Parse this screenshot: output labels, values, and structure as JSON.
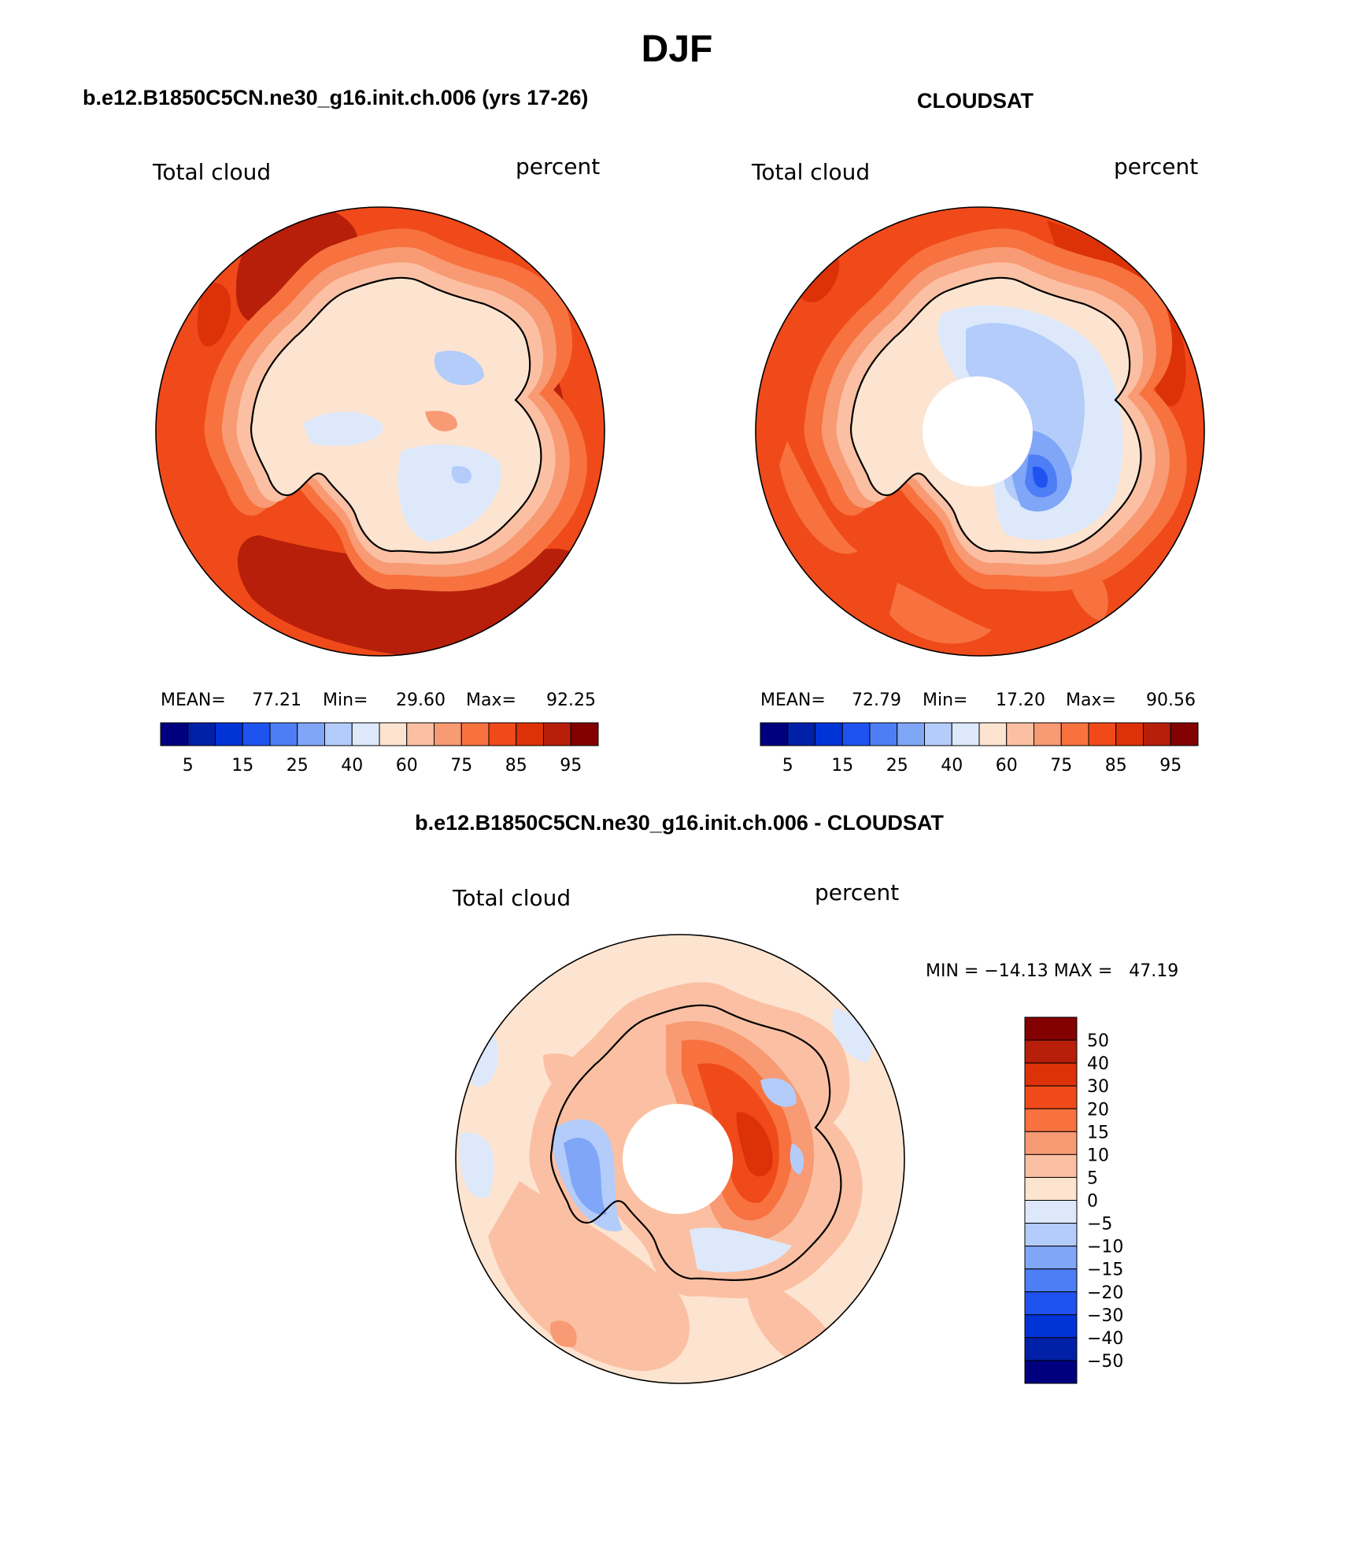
{
  "figure_title": "DJF",
  "panels": [
    {
      "heading": "b.e12.B1850C5CN.ne30_g16.init.ch.006 (yrs 17-26)",
      "variable_label": "Total cloud",
      "units_label": "percent",
      "stats": {
        "mean_label": "MEAN=",
        "mean": "77.21",
        "min_label": "Min=",
        "min": "29.60",
        "max_label": "Max=",
        "max": "92.25"
      },
      "has_polar_hole": false
    },
    {
      "heading": "CLOUDSAT",
      "variable_label": "Total cloud",
      "units_label": "percent",
      "stats": {
        "mean_label": "MEAN=",
        "mean": "72.79",
        "min_label": "Min=",
        "min": "17.20",
        "max_label": "Max=",
        "max": "90.56"
      },
      "has_polar_hole": true
    },
    {
      "heading": "b.e12.B1850C5CN.ne30_g16.init.ch.006 - CLOUDSAT",
      "variable_label": "Total cloud",
      "units_label": "percent",
      "range_text": "MIN = −14.13 MAX =   47.19",
      "has_polar_hole": true
    }
  ],
  "abs_colorbar": {
    "colors": [
      "#00007f",
      "#0020a8",
      "#0033d6",
      "#1f53f0",
      "#4d7ef5",
      "#80a6f7",
      "#b3ccfa",
      "#dde9fb",
      "#fde4d0",
      "#fbc0a3",
      "#f89a73",
      "#f7723f",
      "#f04a1a",
      "#dd3208",
      "#b71f0a",
      "#820000"
    ],
    "tick_labels": [
      "5",
      "15",
      "25",
      "40",
      "60",
      "75",
      "85",
      "95"
    ]
  },
  "diff_colorbar": {
    "colors": [
      "#820000",
      "#b71f0a",
      "#dd3208",
      "#f04a1a",
      "#f7723f",
      "#f89a73",
      "#fbc0a3",
      "#fde4d0",
      "#dde9fb",
      "#b3ccfa",
      "#80a6f7",
      "#4d7ef5",
      "#1f53f0",
      "#0033d6",
      "#0020a8",
      "#00007f"
    ],
    "tick_labels": [
      "50",
      "40",
      "30",
      "20",
      "15",
      "10",
      "5",
      "0",
      "−5",
      "−10",
      "−15",
      "−20",
      "−30",
      "−40",
      "−50"
    ]
  },
  "chart_data": [
    {
      "type": "heatmap",
      "title": "b.e12.B1850C5CN.ne30_g16.init.ch.006 (yrs 17-26)",
      "variable": "Total cloud",
      "units": "percent",
      "mean": 77.21,
      "min": 29.6,
      "max": 92.25,
      "levels": [
        5,
        10,
        15,
        20,
        25,
        30,
        40,
        50,
        60,
        70,
        75,
        80,
        85,
        90,
        95
      ]
    },
    {
      "type": "heatmap",
      "title": "CLOUDSAT",
      "variable": "Total cloud",
      "units": "percent",
      "mean": 72.79,
      "min": 17.2,
      "max": 90.56,
      "levels": [
        5,
        10,
        15,
        20,
        25,
        30,
        40,
        50,
        60,
        70,
        75,
        80,
        85,
        90,
        95
      ]
    },
    {
      "type": "heatmap",
      "title": "b.e12.B1850C5CN.ne30_g16.init.ch.006 - CLOUDSAT",
      "variable": "Total cloud",
      "units": "percent",
      "min": -14.13,
      "max": 47.19,
      "levels": [
        -50,
        -40,
        -30,
        -20,
        -15,
        -10,
        -5,
        0,
        5,
        10,
        15,
        20,
        30,
        40,
        50
      ]
    }
  ]
}
